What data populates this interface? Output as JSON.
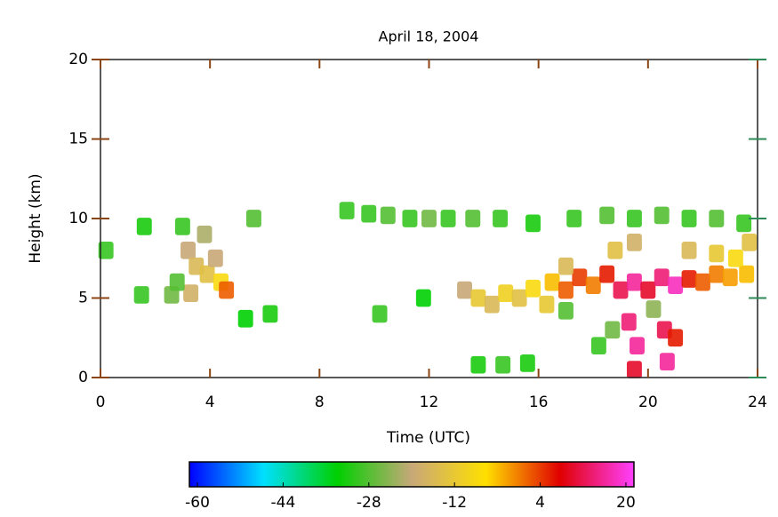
{
  "chart_data": {
    "type": "heatmap",
    "title": "April 18, 2004",
    "x_label": "Time (UTC)",
    "y_label": "Height (km)",
    "xlim": [
      0,
      24
    ],
    "xticks": [
      0,
      4,
      8,
      12,
      16,
      20,
      24
    ],
    "ylim": [
      0,
      20
    ],
    "yticks": [
      0,
      5,
      10,
      15,
      20
    ],
    "x": [
      0.2,
      1.6,
      1.5,
      2.6,
      3,
      3.2,
      3.5,
      3.8,
      3.9,
      4.2,
      4.4,
      4.6,
      3.3,
      2.8,
      5.6,
      6.2,
      5.3,
      9,
      9.8,
      10.5,
      11.3,
      12,
      12.7,
      13.6,
      14.6,
      15.8,
      10.2,
      11.8,
      13.3,
      13.8,
      14.3,
      14.8,
      15.3,
      15.8,
      16.3,
      16.5,
      17,
      17.5,
      18,
      18.5,
      19,
      19.5,
      20,
      20.5,
      21,
      21.5,
      22,
      22.5,
      23,
      23.6,
      17,
      18.8,
      19.5,
      21.5,
      22.5,
      23.2,
      23.7,
      17.3,
      18.5,
      19.5,
      20.5,
      21.5,
      22.5,
      23.5,
      19.3,
      19.6,
      19.5,
      20.6,
      20.7,
      21,
      18.2,
      18.7,
      13.8,
      14.7,
      15.6,
      17,
      20.2
    ],
    "y": [
      8,
      9.5,
      5.2,
      5.2,
      9.5,
      8,
      7,
      9,
      6.5,
      7.5,
      6,
      5.5,
      5.3,
      6,
      10,
      4,
      3.7,
      10.5,
      10.3,
      10.2,
      10,
      10,
      10,
      10,
      10,
      9.7,
      4,
      5,
      5.5,
      5,
      4.6,
      5.3,
      5,
      5.6,
      4.6,
      6,
      5.5,
      6.3,
      5.8,
      6.5,
      5.5,
      6,
      5.5,
      6.3,
      5.8,
      6.2,
      6,
      6.5,
      6.3,
      6.5,
      7,
      8,
      8.5,
      8,
      7.8,
      7.5,
      8.5,
      10,
      10.2,
      10,
      10.2,
      10,
      10,
      9.7,
      3.5,
      2,
      0.5,
      3,
      1,
      2.5,
      2,
      3,
      0.8,
      0.8,
      0.9,
      4.2,
      4.3
    ],
    "values": [
      -30,
      -32,
      -30,
      -26,
      -30,
      -20,
      -16,
      -22,
      -14,
      -20,
      -8,
      2,
      -18,
      -28,
      -28,
      -32,
      -34,
      -30,
      -30,
      -28,
      -30,
      -26,
      -30,
      -28,
      -30,
      -32,
      -30,
      -34,
      -20,
      -12,
      -16,
      -10,
      -14,
      -8,
      -12,
      -4,
      2,
      4,
      0,
      6,
      12,
      16,
      10,
      14,
      18,
      6,
      2,
      0,
      -2,
      -4,
      -16,
      -14,
      -18,
      -16,
      -12,
      -8,
      -14,
      -30,
      -28,
      -30,
      -28,
      -30,
      -28,
      -30,
      14,
      16,
      10,
      12,
      16,
      6,
      -30,
      -26,
      -32,
      -30,
      -32,
      -28,
      -24
    ],
    "colorbar": {
      "lim": [
        -61.5,
        21.5
      ],
      "ticks": [
        -60,
        -44,
        -28,
        -12,
        4,
        20
      ],
      "colors": [
        "#0000ff",
        "#00e0ff",
        "#00d000",
        "#c8a878",
        "#ffe000",
        "#e00000",
        "#ff40ff"
      ]
    }
  }
}
